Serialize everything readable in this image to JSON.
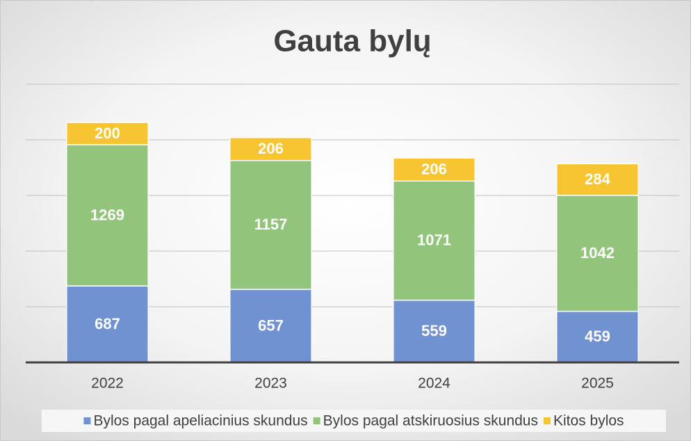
{
  "chart_data": {
    "type": "stacked_bar",
    "title": "Gauta bylų",
    "categories": [
      "2022",
      "2023",
      "2024",
      "2025"
    ],
    "series": [
      {
        "name": "Bylos pagal apeliacinius skundus",
        "color": "#7092d0",
        "values": [
          687,
          657,
          559,
          459
        ]
      },
      {
        "name": "Bylos pagal atskiruosius skundus",
        "color": "#93c47b",
        "values": [
          1269,
          1157,
          1071,
          1042
        ]
      },
      {
        "name": "Kitos bylos",
        "color": "#f7c532",
        "values": [
          200,
          206,
          206,
          284
        ]
      }
    ],
    "ylim": [
      0,
      2500
    ],
    "yticks": [
      0,
      500,
      1000,
      1500,
      2000,
      2500
    ],
    "grid": true,
    "legend": "bottom"
  }
}
